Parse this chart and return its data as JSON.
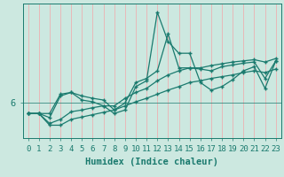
{
  "title": "",
  "xlabel": "Humidex (Indice chaleur)",
  "bg_color": "#cce8e0",
  "line_color": "#1a7a6e",
  "grid_color": "#e8b8b8",
  "x": [
    0,
    1,
    2,
    3,
    4,
    5,
    6,
    7,
    8,
    9,
    10,
    11,
    12,
    13,
    14,
    15,
    16,
    17,
    18,
    19,
    20,
    21,
    22,
    23
  ],
  "series1": [
    5.82,
    5.82,
    5.82,
    6.15,
    6.18,
    6.12,
    6.08,
    6.05,
    5.88,
    6.0,
    6.35,
    6.42,
    6.55,
    7.18,
    6.6,
    6.6,
    6.58,
    6.55,
    6.62,
    6.65,
    6.68,
    6.7,
    6.42,
    6.72
  ],
  "series2": [
    5.82,
    5.82,
    5.75,
    6.12,
    6.18,
    6.05,
    6.02,
    5.95,
    5.82,
    5.88,
    6.28,
    6.38,
    7.55,
    7.05,
    6.85,
    6.85,
    6.35,
    6.22,
    6.28,
    6.4,
    6.55,
    6.62,
    6.25,
    6.72
  ],
  "series3": [
    5.82,
    5.82,
    5.65,
    5.72,
    5.85,
    5.88,
    5.92,
    5.95,
    5.95,
    6.08,
    6.18,
    6.25,
    6.38,
    6.48,
    6.55,
    6.6,
    6.6,
    6.64,
    6.67,
    6.7,
    6.72,
    6.74,
    6.7,
    6.76
  ],
  "series4": [
    5.82,
    5.82,
    5.62,
    5.62,
    5.72,
    5.76,
    5.8,
    5.84,
    5.88,
    5.95,
    6.02,
    6.08,
    6.15,
    6.22,
    6.28,
    6.35,
    6.38,
    6.42,
    6.45,
    6.48,
    6.52,
    6.55,
    6.52,
    6.58
  ],
  "ylim": [
    5.4,
    7.7
  ],
  "xlim": [
    -0.5,
    23.5
  ],
  "yticks": [
    6
  ],
  "xticks": [
    0,
    1,
    2,
    3,
    4,
    5,
    6,
    7,
    8,
    9,
    10,
    11,
    12,
    13,
    14,
    15,
    16,
    17,
    18,
    19,
    20,
    21,
    22,
    23
  ],
  "tick_fontsize": 6.5,
  "label_fontsize": 7.5
}
